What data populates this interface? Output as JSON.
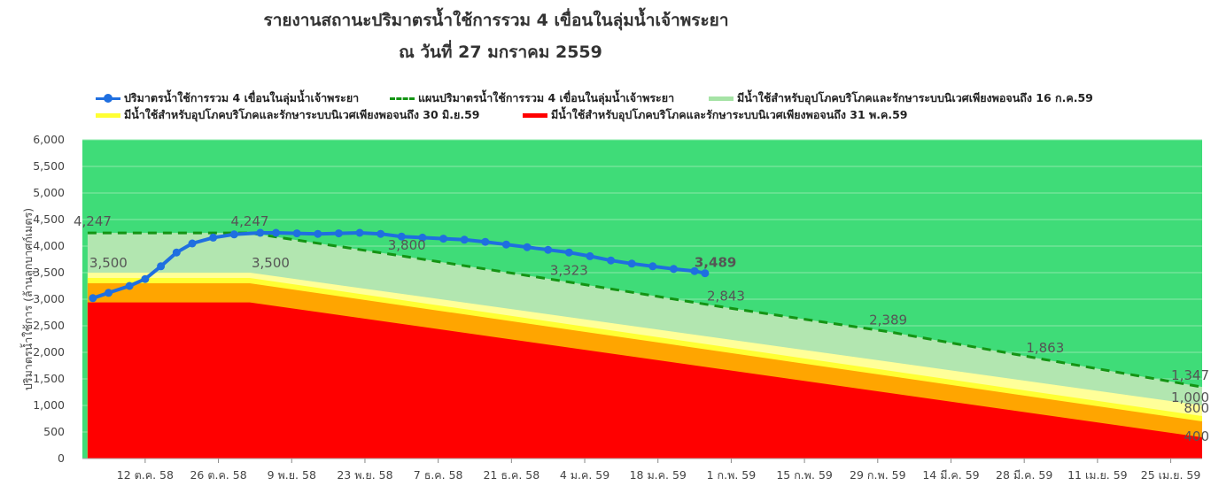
{
  "title_line1": "รายงานสถานะปริมาตรน้ำใช้การรวม 4 เขื่อนในลุ่มน้ำเจ้าพระยา",
  "title_line2": "ณ วันที่ 27 มกราคม 2559",
  "legend": [
    {
      "label": "ปริมาตรน้ำใช้การรวม 4 เขื่อนในลุ่มน้ำเจ้าพระยา",
      "color": "#1f6fe0",
      "style": "line-dots"
    },
    {
      "label": "แผนปริมาตรน้ำใช้การรวม 4 เขื่อนในลุ่มน้ำเจ้าพระยา",
      "color": "#149414",
      "style": "dashed"
    },
    {
      "label": "มีน้ำใช้สำหรับอุปโภคบริโภคและรักษาระบบนิเวศเพียงพอจนถึง 16 ก.ค.59",
      "color": "#a6e3a6",
      "style": "area"
    },
    {
      "label": "มีน้ำใช้สำหรับอุปโภคบริโภคและรักษาระบบนิเวศเพียงพอจนถึง 30 มิ.ย.59",
      "color": "#ffff33",
      "style": "area"
    },
    {
      "label": "มีน้ำใช้สำหรับอุปโภคบริโภคและรักษาระบบนิเวศเพียงพอจนถึง 31 พ.ค.59",
      "color": "#ff0000",
      "style": "area"
    }
  ],
  "colors": {
    "plot_bg": "#3fdc78",
    "grid": "#8be8a8",
    "light_green": "#b2e6b0",
    "pale_yellow": "#ffff99",
    "yellow": "#ffff33",
    "orange": "#ffa500",
    "red": "#ff0000",
    "actual": "#1f6fe0",
    "plan": "#149414"
  },
  "chart_data": {
    "type": "area",
    "ylabel": "ปริมาตรน้ำใช้การ (ล้านลูกบาศก์เมตร)",
    "ylim": [
      0,
      6000
    ],
    "yticks": [
      "0",
      "500",
      "1,000",
      "1,500",
      "2,000",
      "2,500",
      "3,000",
      "3,500",
      "4,000",
      "4,500",
      "5,000",
      "5,500",
      "6,000"
    ],
    "x_tick_labels": [
      "12 ต.ค. 58",
      "26 ต.ค. 58",
      "9 พ.ย. 58",
      "23 พ.ย. 58",
      "7 ธ.ค. 58",
      "21 ธ.ค. 58",
      "4 ม.ค. 59",
      "18 ม.ค. 59",
      "1 ก.พ. 59",
      "15 ก.พ. 59",
      "29 ก.พ. 59",
      "14 มี.ค. 59",
      "28 มี.ค. 59",
      "11 เม.ย. 59",
      "25 เม.ย. 59"
    ],
    "x_tick_days": [
      11,
      25,
      39,
      53,
      67,
      81,
      95,
      109,
      123,
      137,
      151,
      165,
      179,
      193,
      207
    ],
    "x_range_days": [
      -1,
      213
    ],
    "series": [
      {
        "name": "ปริมาตรน้ำใช้การรวม 4 เขื่อนในลุ่มน้ำเจ้าพระยา",
        "type": "line",
        "x_days": [
          1,
          4,
          8,
          11,
          14,
          17,
          20,
          24,
          28,
          33,
          36,
          40,
          44,
          48,
          52,
          56,
          60,
          64,
          68,
          72,
          76,
          80,
          84,
          88,
          92,
          96,
          100,
          104,
          108,
          112,
          116,
          118
        ],
        "values": [
          3020,
          3120,
          3250,
          3380,
          3620,
          3880,
          4050,
          4160,
          4220,
          4250,
          4250,
          4240,
          4230,
          4240,
          4250,
          4230,
          4180,
          4160,
          4140,
          4120,
          4080,
          4030,
          3980,
          3930,
          3880,
          3810,
          3730,
          3670,
          3620,
          3570,
          3530,
          3489
        ]
      },
      {
        "name": "แผนปริมาตรน้ำใช้การรวม 4 เขื่อนในลุ่มน้ำเจ้าพระยา",
        "type": "dashed",
        "x_days": [
          0,
          31,
          61,
          92,
          122,
          153,
          183,
          213
        ],
        "values": [
          4247,
          4247,
          3800,
          3323,
          2843,
          2389,
          1863,
          1347
        ]
      },
      {
        "name": "มีน้ำใช้สำหรับอุปโภคบริโภคและรักษาระบบนิเวศเพียงพอจนถึง 16 ก.ค.59",
        "type": "area",
        "x_days": [
          0,
          31,
          61,
          92,
          122,
          153,
          183,
          213
        ],
        "values": [
          4247,
          4247,
          3800,
          3323,
          2843,
          2389,
          1863,
          1347
        ]
      },
      {
        "name": "pale-yellow band",
        "type": "area",
        "x_days": [
          0,
          31,
          213
        ],
        "values": [
          3500,
          3500,
          1000
        ]
      },
      {
        "name": "มีน้ำใช้สำหรับอุปโภคบริโภคและรักษาระบบนิเวศเพียงพอจนถึง 30 มิ.ย.59",
        "type": "area",
        "x_days": [
          0,
          31,
          213
        ],
        "values": [
          3400,
          3400,
          800
        ]
      },
      {
        "name": "orange band",
        "type": "area",
        "x_days": [
          0,
          31,
          213
        ],
        "values": [
          3300,
          3300,
          700
        ]
      },
      {
        "name": "มีน้ำใช้สำหรับอุปโภคบริโภคและรักษาระบบนิเวศเพียงพอจนถึง 31 พ.ค.59",
        "type": "area",
        "x_days": [
          0,
          31,
          213
        ],
        "values": [
          2940,
          2940,
          400
        ]
      }
    ],
    "annotations": [
      {
        "text": "4,247",
        "x_day": -1,
        "y": 4247
      },
      {
        "text": "4,247",
        "x_day": 31,
        "y": 4247
      },
      {
        "text": "3,800",
        "x_day": 61,
        "y": 3800
      },
      {
        "text": "3,323",
        "x_day": 92,
        "y": 3323
      },
      {
        "text": "2,843",
        "x_day": 122,
        "y": 2843
      },
      {
        "text": "2,389",
        "x_day": 153,
        "y": 2389
      },
      {
        "text": "1,863",
        "x_day": 183,
        "y": 1863
      },
      {
        "text": "1,347",
        "x_day": 213,
        "y": 1347
      },
      {
        "text": "3,500",
        "x_day": 0,
        "y": 3500
      },
      {
        "text": "3,500",
        "x_day": 31,
        "y": 3500
      },
      {
        "text": "1,000",
        "x_day": 213,
        "y": 1000
      },
      {
        "text": "800",
        "x_day": 213,
        "y": 800
      },
      {
        "text": "400",
        "x_day": 213,
        "y": 400
      },
      {
        "text": "3,489",
        "x_day": 118,
        "y": 3489
      }
    ]
  }
}
